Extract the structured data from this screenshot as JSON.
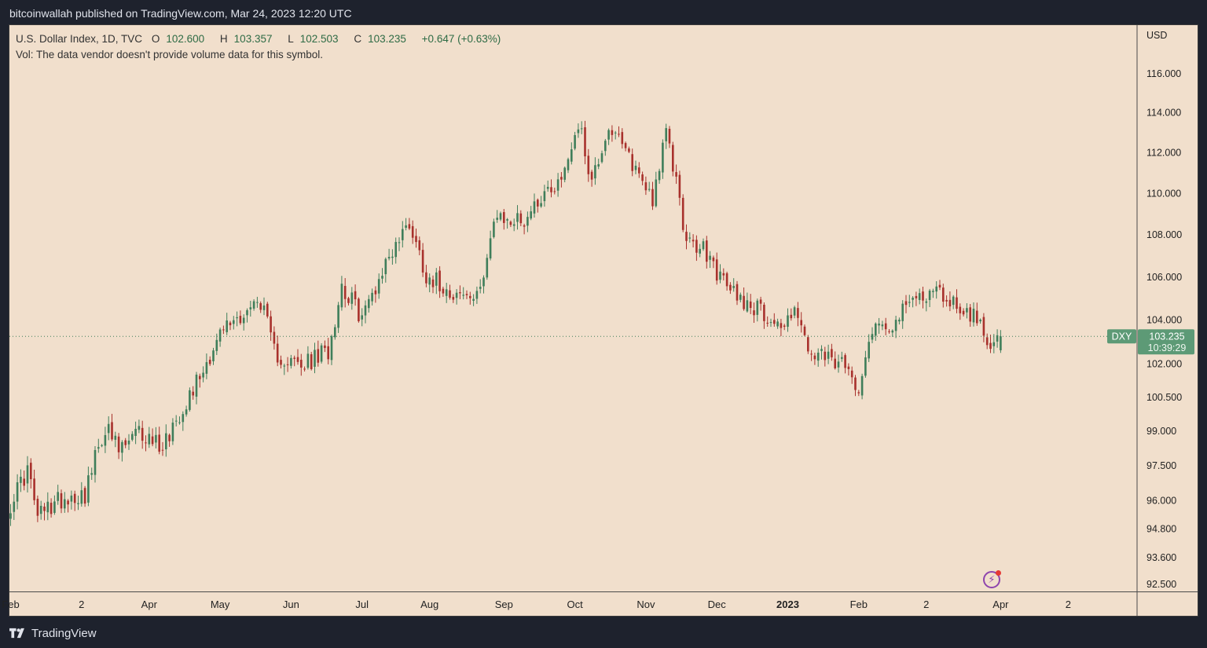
{
  "header": {
    "attribution": "bitcoinwallah published on TradingView.com, Mar 24, 2023 12:20 UTC"
  },
  "legend": {
    "symbol_line": "U.S. Dollar Index, 1D, TVC",
    "open_label": "O",
    "open": "102.600",
    "high_label": "H",
    "high": "103.357",
    "low_label": "L",
    "low": "102.503",
    "close_label": "C",
    "close": "103.235",
    "change": "+0.647 (+0.63%)",
    "volume_note": "Vol: The data vendor doesn't provide volume data for this symbol."
  },
  "price_axis": {
    "currency": "USD",
    "symbol_tag": "DXY",
    "last_price": "103.235",
    "countdown": "10:39:29"
  },
  "footer": {
    "brand": "TradingView"
  },
  "colors": {
    "up": "#3f7e5a",
    "down": "#a8312c",
    "background": "#f1dfcc",
    "label_bg": "#5d9a76"
  },
  "chart_data": {
    "type": "candlestick",
    "ylim": [
      92.2,
      118.5
    ],
    "y_ticks": [
      "116.000",
      "114.000",
      "112.000",
      "110.000",
      "108.000",
      "106.000",
      "104.000",
      "102.000",
      "100.500",
      "99.000",
      "97.500",
      "96.000",
      "94.800",
      "93.600",
      "92.500"
    ],
    "y_tick_values": [
      116,
      114,
      112,
      110,
      108,
      106,
      104,
      102,
      100.5,
      99,
      97.5,
      96,
      94.8,
      93.6,
      92.5
    ],
    "x_labels": [
      "Feb",
      "2",
      "Apr",
      "May",
      "Jun",
      "Jul",
      "Aug",
      "Sep",
      "Oct",
      "Nov",
      "Dec",
      "2023",
      "Feb",
      "2",
      "Apr",
      "2"
    ],
    "x_label_days": [
      0,
      21,
      41,
      62,
      83,
      104,
      124,
      146,
      167,
      188,
      209,
      230,
      251,
      271,
      293,
      313
    ],
    "bold_labels": [
      "2023"
    ],
    "last_close": 103.235,
    "anchors": [
      [
        0,
        95.9
      ],
      [
        5,
        97.3
      ],
      [
        8,
        95.3
      ],
      [
        15,
        96.1
      ],
      [
        22,
        96.3
      ],
      [
        28,
        99.2
      ],
      [
        32,
        98.1
      ],
      [
        38,
        98.9
      ],
      [
        45,
        98.4
      ],
      [
        55,
        101.2
      ],
      [
        63,
        103.6
      ],
      [
        74,
        104.9
      ],
      [
        78,
        102.5
      ],
      [
        86,
        101.8
      ],
      [
        94,
        102.6
      ],
      [
        98,
        105.6
      ],
      [
        104,
        104.1
      ],
      [
        112,
        107.0
      ],
      [
        118,
        108.6
      ],
      [
        123,
        106.1
      ],
      [
        132,
        105.2
      ],
      [
        138,
        104.9
      ],
      [
        143,
        108.6
      ],
      [
        152,
        108.7
      ],
      [
        157,
        109.9
      ],
      [
        163,
        110.7
      ],
      [
        168,
        113.5
      ],
      [
        172,
        110.6
      ],
      [
        177,
        113.3
      ],
      [
        185,
        111.2
      ],
      [
        190,
        109.8
      ],
      [
        194,
        112.9
      ],
      [
        198,
        109.8
      ],
      [
        200,
        107.5
      ],
      [
        205,
        107.3
      ],
      [
        211,
        105.7
      ],
      [
        218,
        104.8
      ],
      [
        222,
        104.4
      ],
      [
        229,
        103.6
      ],
      [
        232,
        104.8
      ],
      [
        236,
        102.4
      ],
      [
        245,
        102.0
      ],
      [
        251,
        101.1
      ],
      [
        255,
        103.7
      ],
      [
        262,
        103.9
      ],
      [
        268,
        105.1
      ],
      [
        274,
        105.3
      ],
      [
        279,
        104.8
      ],
      [
        286,
        104.0
      ],
      [
        291,
        102.8
      ],
      [
        293,
        103.235
      ]
    ]
  }
}
